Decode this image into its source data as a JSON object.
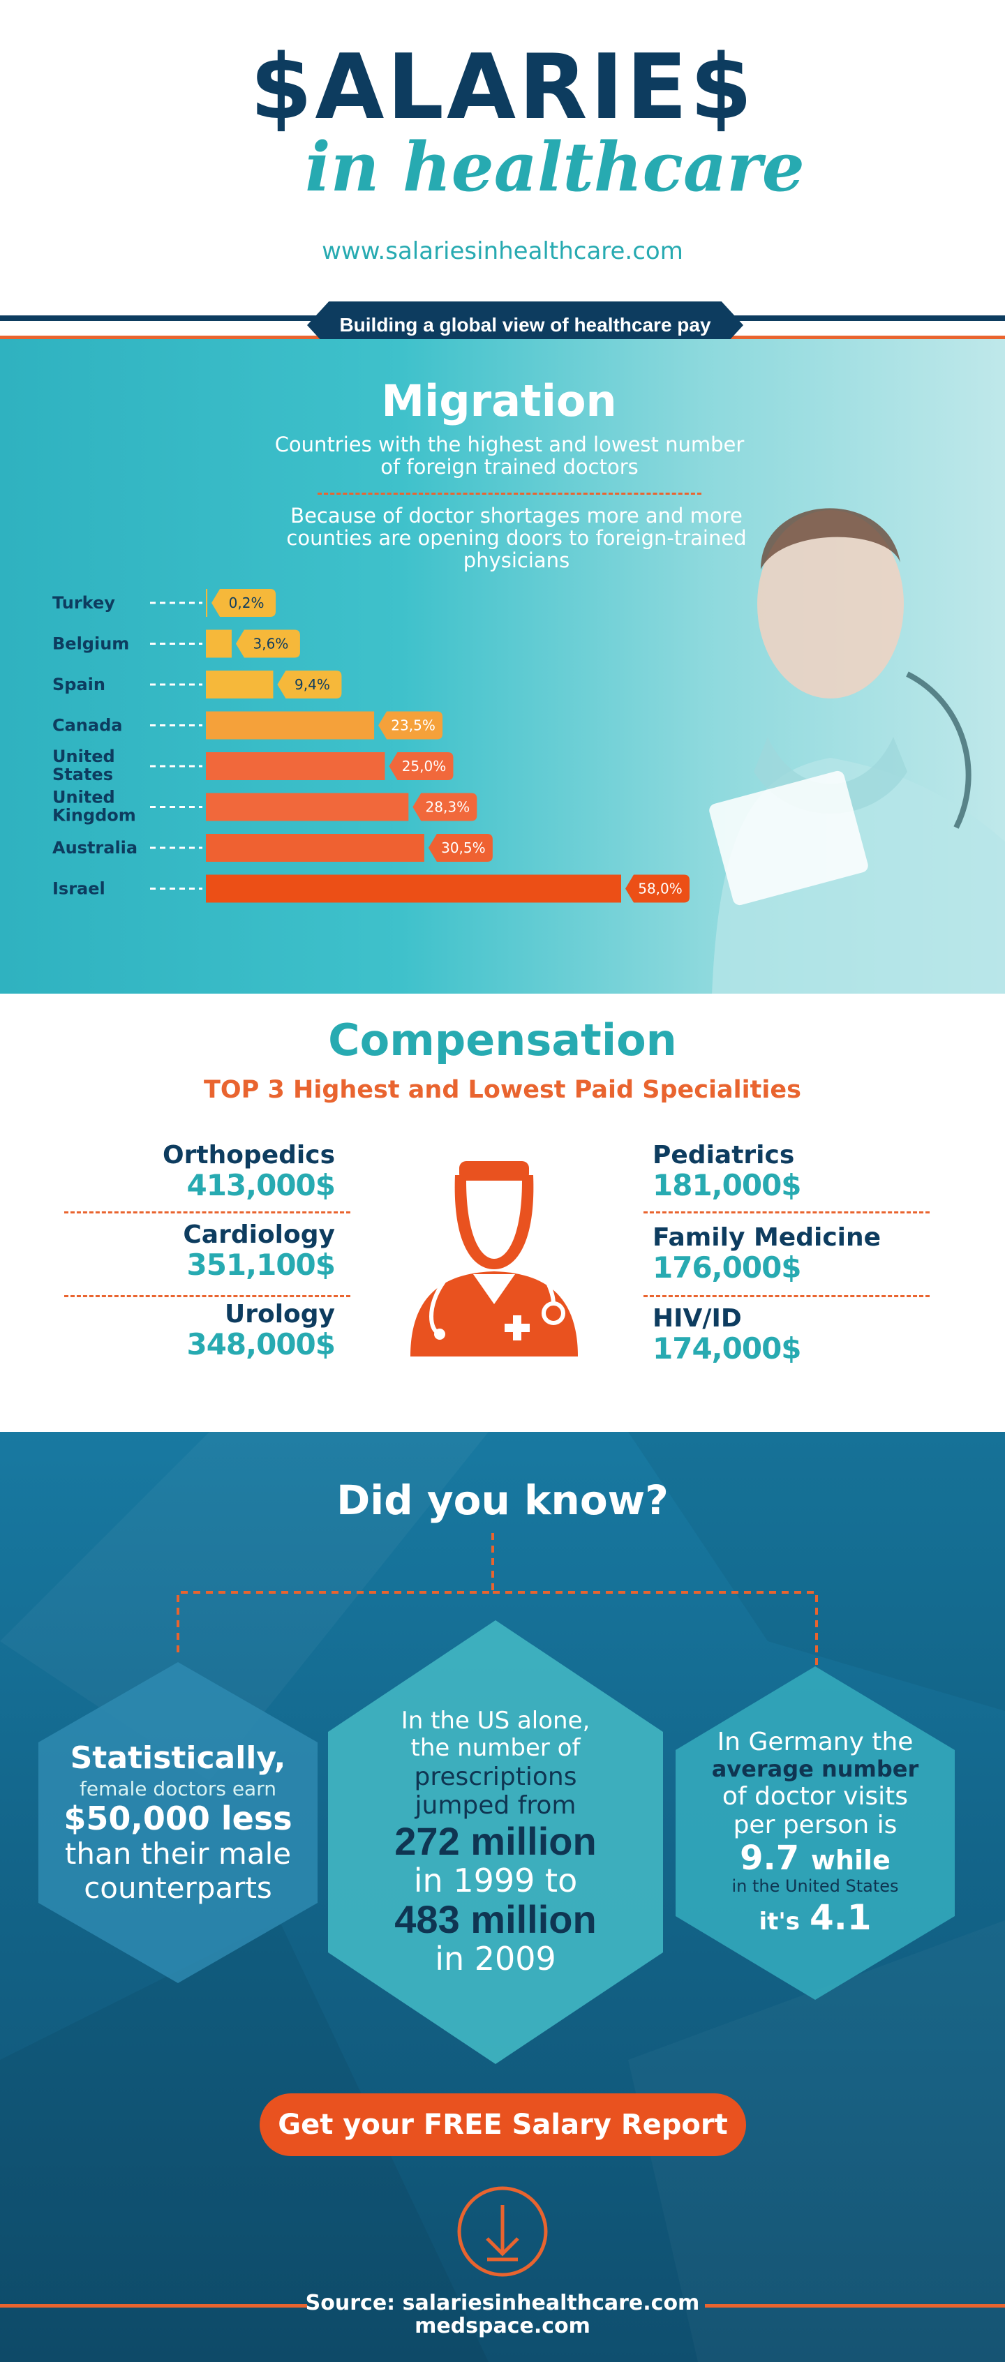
{
  "header": {
    "logo_main": "$ALARIE$",
    "logo_sub": "in healthcare",
    "url": "www.salariesinhealthcare.com",
    "ribbon": "Building a global view of healthcare pay"
  },
  "migration": {
    "title": "Migration",
    "subtitle": "Countries with the highest and lowest number of foreign trained doctors",
    "note": "Because of doctor shortages more and more counties are opening doors to foreign-trained physicians"
  },
  "chart_data": {
    "type": "bar",
    "orientation": "horizontal",
    "categories": [
      "Turkey",
      "Belgium",
      "Spain",
      "Canada",
      "United States",
      "United Kingdom",
      "Australia",
      "Israel"
    ],
    "values": [
      0.2,
      3.6,
      9.4,
      23.5,
      25.0,
      28.3,
      30.5,
      58.0
    ],
    "data_labels": [
      "0,2%",
      "3,6%",
      "9,4%",
      "23,5%",
      "25,0%",
      "28,3%",
      "30,5%",
      "58,0%"
    ],
    "xlim": [
      0,
      58
    ],
    "bar_colors": [
      "#f6b83a",
      "#f6b83a",
      "#f6b83a",
      "#f5a13a",
      "#f1683b",
      "#f1683b",
      "#ef6131",
      "#ec4f16"
    ],
    "grid": false
  },
  "compensation": {
    "title": "Compensation",
    "subtitle": "TOP 3 Highest and Lowest Paid Specialities",
    "highest": [
      {
        "name": "Orthopedics",
        "salary": "413,000$"
      },
      {
        "name": "Cardiology",
        "salary": "351,100$"
      },
      {
        "name": "Urology",
        "salary": "348,000$"
      }
    ],
    "lowest": [
      {
        "name": "Pediatrics",
        "salary": "181,000$"
      },
      {
        "name": "Family Medicine",
        "salary": "176,000$"
      },
      {
        "name": "HIV/ID",
        "salary": "174,000$"
      }
    ]
  },
  "did_you_know": {
    "title": "Did you know?",
    "fact1": {
      "a": "Statistically,",
      "b": "female doctors earn",
      "c": "$50,000 less",
      "d": "than their male counterparts"
    },
    "fact2": {
      "a": "In the US alone, the number of",
      "b": "prescriptions jumped from",
      "c1": "272 million",
      "d1": "in 1999 to",
      "c2": "483 million",
      "d2": "in 2009"
    },
    "fact3": {
      "a": "In Germany the",
      "b": "average number",
      "c": "of doctor visits per person is",
      "d1": "9.7",
      "d2": "while",
      "e": "in the United States",
      "f1": "it's",
      "f2": "4.1"
    },
    "cta": "Get your FREE Salary Report",
    "source_line1": "Source: salariesinhealthcare.com",
    "source_line2": "medspace.com"
  },
  "colors": {
    "navy": "#0d3c5f",
    "teal": "#27aab1",
    "orange": "#e9642f"
  }
}
